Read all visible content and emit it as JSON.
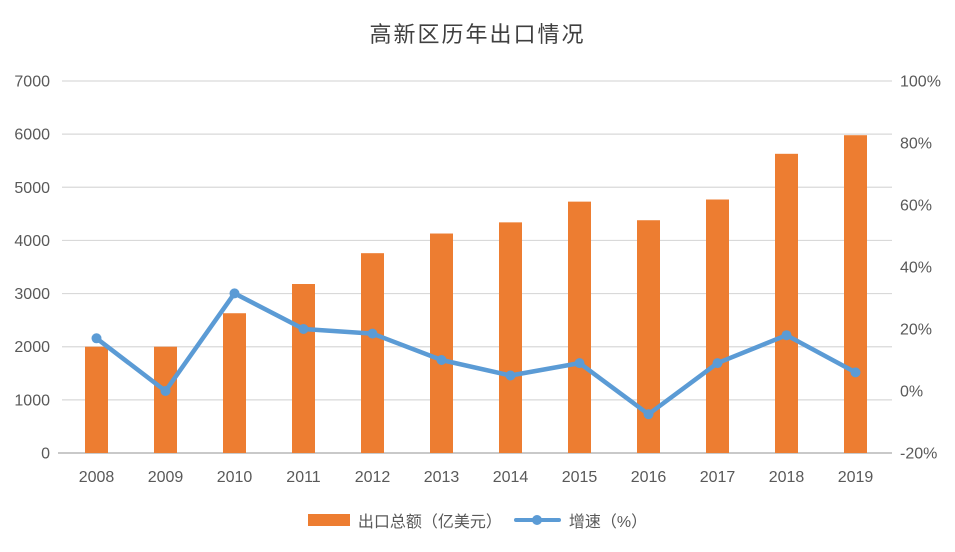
{
  "chart_data": {
    "type": "combo-bar-line",
    "title": "高新区历年出口情况",
    "categories": [
      "2008",
      "2009",
      "2010",
      "2011",
      "2012",
      "2013",
      "2014",
      "2015",
      "2016",
      "2017",
      "2018",
      "2019"
    ],
    "series": [
      {
        "name": "出口总额（亿美元）",
        "type": "bar",
        "axis": "left",
        "color": "#ED7D31",
        "values": [
          2000,
          2000,
          2630,
          3180,
          3760,
          4130,
          4340,
          4730,
          4380,
          4770,
          5630,
          5980
        ]
      },
      {
        "name": "增速（%）",
        "type": "line",
        "axis": "right",
        "color": "#5B9BD5",
        "values": [
          17,
          0,
          31.5,
          20,
          18.5,
          10,
          5,
          9,
          -7.5,
          9,
          18,
          6
        ]
      }
    ],
    "left_axis": {
      "min": 0,
      "max": 7000,
      "step": 1000,
      "tick_labels": [
        "0",
        "1000",
        "2000",
        "3000",
        "4000",
        "5000",
        "6000",
        "7000"
      ]
    },
    "right_axis": {
      "min": -20,
      "max": 100,
      "step": 20,
      "tick_labels": [
        "-20%",
        "0%",
        "20%",
        "40%",
        "60%",
        "80%",
        "100%"
      ]
    },
    "grid": true,
    "legend_position": "bottom",
    "colors": {
      "grid_line": "#D9D9D9",
      "baseline": "#C9C9C9",
      "axis_text": "#595959",
      "title_text": "#3F3F3F",
      "background": "#FFFFFF"
    }
  }
}
